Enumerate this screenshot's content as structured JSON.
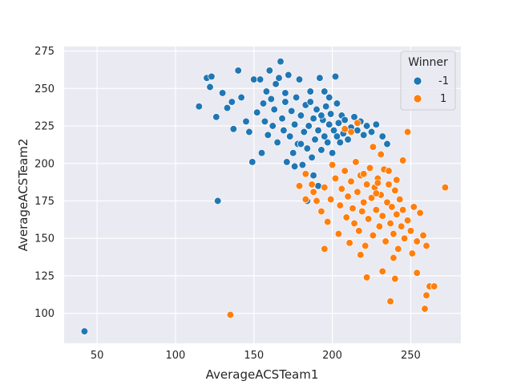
{
  "chart_data": {
    "type": "scatter",
    "title": "",
    "xlabel": "AverageACSTeam1",
    "ylabel": "AverageACSTeam2",
    "xlim": [
      29,
      282
    ],
    "ylim": [
      80,
      278
    ],
    "xticks": [
      50,
      100,
      150,
      200,
      250
    ],
    "yticks": [
      100,
      125,
      150,
      175,
      200,
      225,
      250,
      275
    ],
    "grid": true,
    "background": "#eaeaf2",
    "legend": {
      "title": "Winner",
      "placement": "top-right",
      "entries": [
        {
          "label": "-1",
          "color": "#1f77b4"
        },
        {
          "label": "1",
          "color": "#ff7f0e"
        }
      ]
    },
    "series": [
      {
        "name": "-1",
        "color": "#1f77b4",
        "points": [
          [
            42,
            88
          ],
          [
            127,
            175
          ],
          [
            115,
            238
          ],
          [
            120,
            257
          ],
          [
            123,
            258
          ],
          [
            122,
            251
          ],
          [
            126,
            231
          ],
          [
            130,
            247
          ],
          [
            133,
            237
          ],
          [
            136,
            241
          ],
          [
            137,
            223
          ],
          [
            140,
            262
          ],
          [
            142,
            244
          ],
          [
            145,
            228
          ],
          [
            147,
            221
          ],
          [
            149,
            201
          ],
          [
            150,
            256
          ],
          [
            152,
            234
          ],
          [
            154,
            256
          ],
          [
            155,
            207
          ],
          [
            156,
            240
          ],
          [
            157,
            228
          ],
          [
            158,
            248
          ],
          [
            159,
            219
          ],
          [
            160,
            262
          ],
          [
            161,
            243
          ],
          [
            162,
            225
          ],
          [
            163,
            236
          ],
          [
            164,
            253
          ],
          [
            165,
            214
          ],
          [
            166,
            257
          ],
          [
            167,
            268
          ],
          [
            168,
            230
          ],
          [
            169,
            222
          ],
          [
            170,
            241
          ],
          [
            171,
            201
          ],
          [
            172,
            259
          ],
          [
            173,
            218
          ],
          [
            174,
            235
          ],
          [
            175,
            207
          ],
          [
            176,
            226
          ],
          [
            177,
            244
          ],
          [
            178,
            213
          ],
          [
            179,
            256
          ],
          [
            180,
            232
          ],
          [
            181,
            199
          ],
          [
            182,
            221
          ],
          [
            183,
            239
          ],
          [
            184,
            210
          ],
          [
            185,
            225
          ],
          [
            186,
            248
          ],
          [
            187,
            204
          ],
          [
            188,
            230
          ],
          [
            189,
            216
          ],
          [
            190,
            236
          ],
          [
            191,
            222
          ],
          [
            192,
            257
          ],
          [
            193,
            209
          ],
          [
            194,
            229
          ],
          [
            195,
            218
          ],
          [
            196,
            238
          ],
          [
            197,
            214
          ],
          [
            198,
            226
          ],
          [
            199,
            233
          ],
          [
            200,
            207
          ],
          [
            201,
            222
          ],
          [
            202,
            258
          ],
          [
            203,
            218
          ],
          [
            204,
            227
          ],
          [
            205,
            214
          ],
          [
            206,
            232
          ],
          [
            207,
            220
          ],
          [
            208,
            229
          ],
          [
            210,
            216
          ],
          [
            212,
            224
          ],
          [
            214,
            231
          ],
          [
            216,
            222
          ],
          [
            218,
            228
          ],
          [
            220,
            219
          ],
          [
            222,
            225
          ],
          [
            225,
            221
          ],
          [
            228,
            226
          ],
          [
            232,
            218
          ],
          [
            235,
            213
          ],
          [
            191,
            185
          ],
          [
            184,
            175
          ],
          [
            188,
            192
          ],
          [
            180,
            213
          ],
          [
            176,
            198
          ],
          [
            193,
            232
          ],
          [
            170,
            247
          ],
          [
            186,
            241
          ],
          [
            198,
            244
          ],
          [
            203,
            240
          ],
          [
            195,
            248
          ]
        ]
      },
      {
        "name": "1",
        "color": "#ff7f0e",
        "points": [
          [
            135,
            99
          ],
          [
            195,
            143
          ],
          [
            183,
            193
          ],
          [
            187,
            186
          ],
          [
            190,
            175
          ],
          [
            193,
            168
          ],
          [
            195,
            184
          ],
          [
            197,
            161
          ],
          [
            199,
            176
          ],
          [
            200,
            199
          ],
          [
            202,
            190
          ],
          [
            204,
            153
          ],
          [
            205,
            172
          ],
          [
            206,
            183
          ],
          [
            208,
            195
          ],
          [
            209,
            164
          ],
          [
            210,
            178
          ],
          [
            211,
            147
          ],
          [
            212,
            188
          ],
          [
            213,
            170
          ],
          [
            214,
            160
          ],
          [
            215,
            201
          ],
          [
            216,
            181
          ],
          [
            217,
            155
          ],
          [
            218,
            192
          ],
          [
            219,
            168
          ],
          [
            220,
            174
          ],
          [
            221,
            145
          ],
          [
            222,
            186
          ],
          [
            223,
            163
          ],
          [
            224,
            197
          ],
          [
            225,
            177
          ],
          [
            226,
            152
          ],
          [
            227,
            184
          ],
          [
            228,
            169
          ],
          [
            229,
            190
          ],
          [
            230,
            158
          ],
          [
            231,
            179
          ],
          [
            232,
            165
          ],
          [
            233,
            196
          ],
          [
            234,
            148
          ],
          [
            235,
            174
          ],
          [
            236,
            186
          ],
          [
            237,
            160
          ],
          [
            238,
            171
          ],
          [
            239,
            153
          ],
          [
            240,
            182
          ],
          [
            241,
            166
          ],
          [
            242,
            143
          ],
          [
            243,
            176
          ],
          [
            244,
            158
          ],
          [
            245,
            169
          ],
          [
            246,
            150
          ],
          [
            248,
            162
          ],
          [
            250,
            155
          ],
          [
            252,
            171
          ],
          [
            254,
            148
          ],
          [
            256,
            167
          ],
          [
            258,
            152
          ],
          [
            260,
            145
          ],
          [
            262,
            118
          ],
          [
            265,
            118
          ],
          [
            260,
            112
          ],
          [
            259,
            103
          ],
          [
            254,
            127
          ],
          [
            251,
            140
          ],
          [
            272,
            184
          ],
          [
            248,
            221
          ],
          [
            237,
            108
          ],
          [
            232,
            128
          ],
          [
            240,
            123
          ],
          [
            222,
            124
          ],
          [
            218,
            139
          ],
          [
            226,
            211
          ],
          [
            212,
            221
          ],
          [
            208,
            223
          ],
          [
            216,
            227
          ],
          [
            231,
            206
          ],
          [
            236,
            195
          ],
          [
            245,
            202
          ],
          [
            188,
            181
          ],
          [
            183,
            176
          ],
          [
            179,
            185
          ],
          [
            229,
            187
          ],
          [
            220,
            193
          ],
          [
            241,
            189
          ],
          [
            228,
            180
          ],
          [
            239,
            137
          ]
        ]
      }
    ]
  }
}
